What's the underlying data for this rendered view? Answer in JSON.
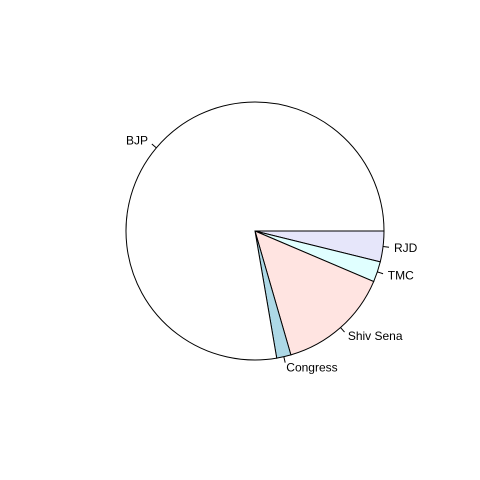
{
  "chart_data": {
    "type": "pie",
    "title": "",
    "start_angle_deg": 0,
    "direction": "clockwise",
    "slices": [
      {
        "label": "RJD",
        "value": 15,
        "color": "#e6e6fa"
      },
      {
        "label": "TMC",
        "value": 10,
        "color": "#e0ffff"
      },
      {
        "label": "Shiv Sena",
        "value": 55,
        "color": "#ffe4e1"
      },
      {
        "label": "Congress",
        "value": 7,
        "color": "#add8e6"
      },
      {
        "label": "BJP",
        "value": 303,
        "color": "#ffffff"
      }
    ]
  }
}
